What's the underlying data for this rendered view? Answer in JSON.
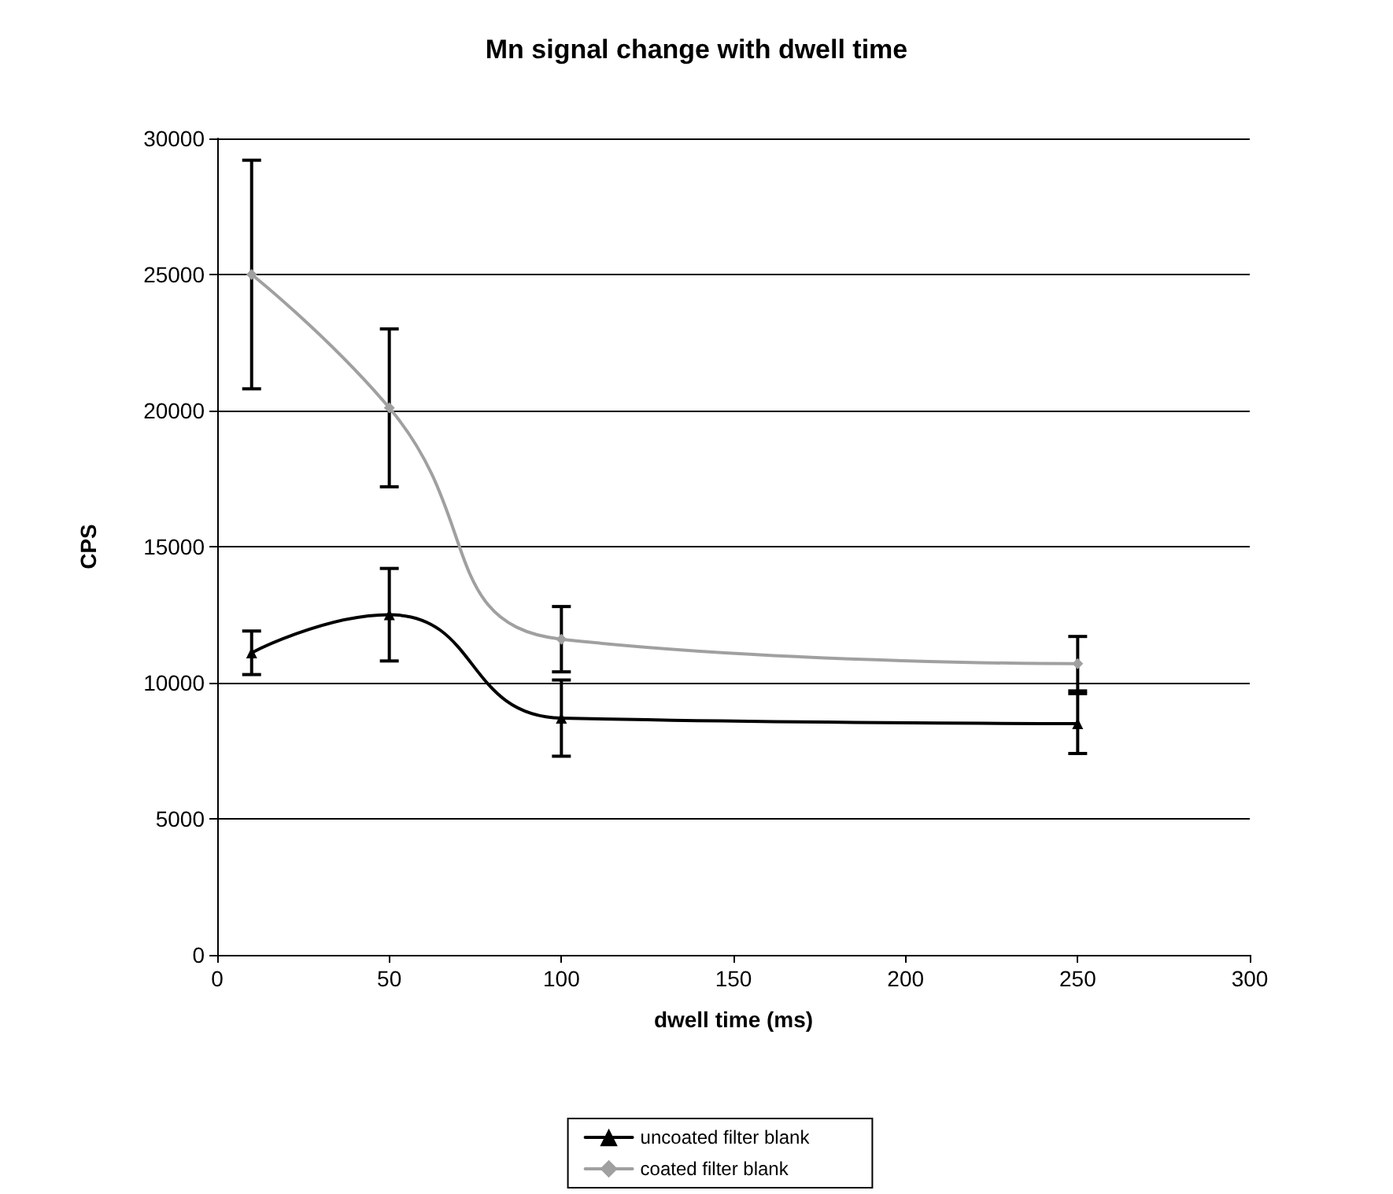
{
  "chart_data": {
    "type": "line",
    "title": "Mn signal change with dwell time",
    "xlabel": "dwell time (ms)",
    "ylabel": "CPS",
    "x": [
      10,
      50,
      100,
      250
    ],
    "series": [
      {
        "name": "uncoated filter blank",
        "color": "#000000",
        "marker": "triangle",
        "values": [
          11100,
          12500,
          8700,
          8500
        ],
        "errors": [
          800,
          1700,
          1400,
          1100
        ]
      },
      {
        "name": "coated filter blank",
        "color": "#a0a0a0",
        "marker": "diamond",
        "values": [
          25000,
          20100,
          11600,
          10700
        ],
        "errors": [
          4200,
          2900,
          1200,
          1000
        ]
      }
    ],
    "xlim": [
      0,
      300
    ],
    "xticks": [
      0,
      50,
      100,
      150,
      200,
      250,
      300
    ],
    "ylim": [
      0,
      30000
    ],
    "yticks": [
      0,
      5000,
      10000,
      15000,
      20000,
      25000,
      30000
    ],
    "grid": "y",
    "legend": "bottom"
  }
}
